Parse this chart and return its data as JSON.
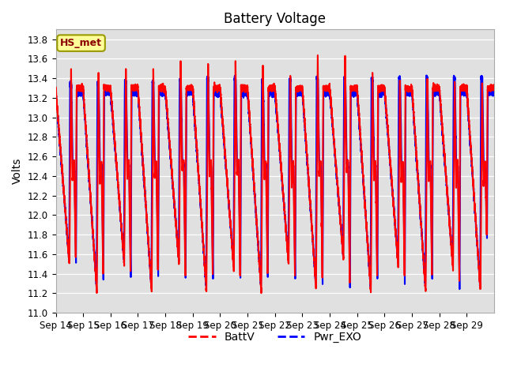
{
  "title": "Battery Voltage",
  "ylabel": "Volts",
  "ylim": [
    11.0,
    13.9
  ],
  "yticks": [
    11.0,
    11.2,
    11.4,
    11.6,
    11.8,
    12.0,
    12.2,
    12.4,
    12.6,
    12.8,
    13.0,
    13.2,
    13.4,
    13.6,
    13.8
  ],
  "xtick_labels": [
    "Sep 14",
    "Sep 15",
    "Sep 16",
    "Sep 17",
    "Sep 18",
    "Sep 19",
    "Sep 20",
    "Sep 21",
    "Sep 22",
    "Sep 23",
    "Sep 24",
    "Sep 25",
    "Sep 26",
    "Sep 27",
    "Sep 28",
    "Sep 29"
  ],
  "legend_labels": [
    "BattV",
    "Pwr_EXO"
  ],
  "batt_color": "red",
  "exo_color": "blue",
  "annotation_text": "HS_met",
  "plot_bg_color": "#e0e0e0",
  "title_fontsize": 12,
  "label_fontsize": 10,
  "tick_fontsize": 8.5,
  "linewidth": 1.5
}
